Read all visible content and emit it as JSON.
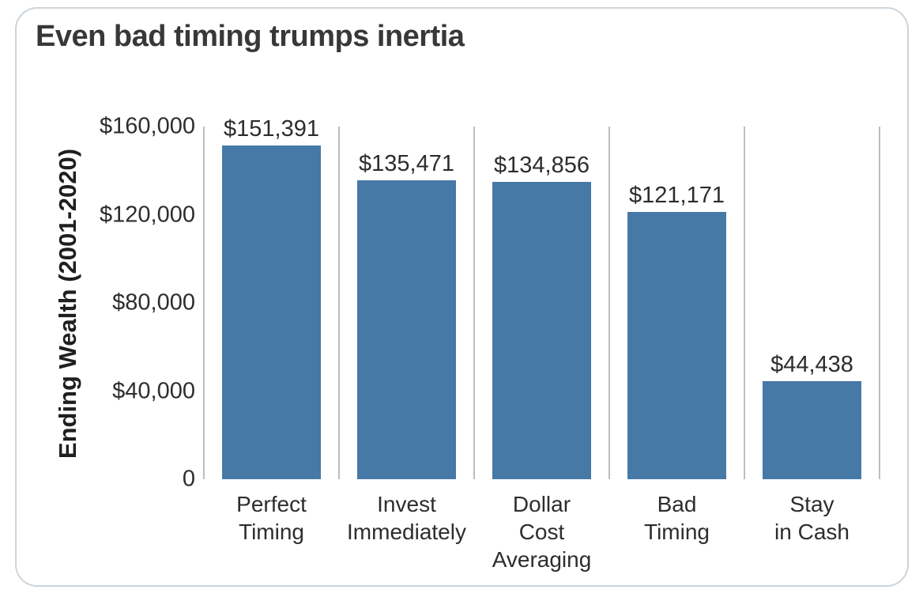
{
  "chart_data": {
    "type": "bar",
    "title": "Even bad timing trumps inertia",
    "ylabel": "Ending Wealth (2001-2020)",
    "xlabel": "",
    "categories": [
      "Perfect Timing",
      "Invest Immediately",
      "Dollar Cost Averaging",
      "Bad Timing",
      "Stay in Cash"
    ],
    "category_lines": [
      [
        "Perfect",
        "Timing"
      ],
      [
        "Invest",
        "Immediately"
      ],
      [
        "Dollar",
        "Cost",
        "Averaging"
      ],
      [
        "Bad",
        "Timing"
      ],
      [
        "Stay",
        "in Cash"
      ]
    ],
    "values": [
      151391,
      135471,
      134856,
      121171,
      44438
    ],
    "value_labels": [
      "$151,391",
      "$135,471",
      "$134,856",
      "$121,171",
      "$44,438"
    ],
    "ylim": [
      0,
      160000
    ],
    "y_ticks": [
      {
        "value": 0,
        "label": "0"
      },
      {
        "value": 40000,
        "label": "$40,000"
      },
      {
        "value": 80000,
        "label": "$80,000"
      },
      {
        "value": 120000,
        "label": "$120,000"
      },
      {
        "value": 160000,
        "label": "$160,000"
      }
    ],
    "grid": "vertical category separators",
    "legend": "none",
    "colors": {
      "bar": "#4779A7",
      "separator": "#BBBEC0",
      "text": "#2D2D2D",
      "title": "#383838",
      "card_border": "#CCD5DB"
    }
  }
}
